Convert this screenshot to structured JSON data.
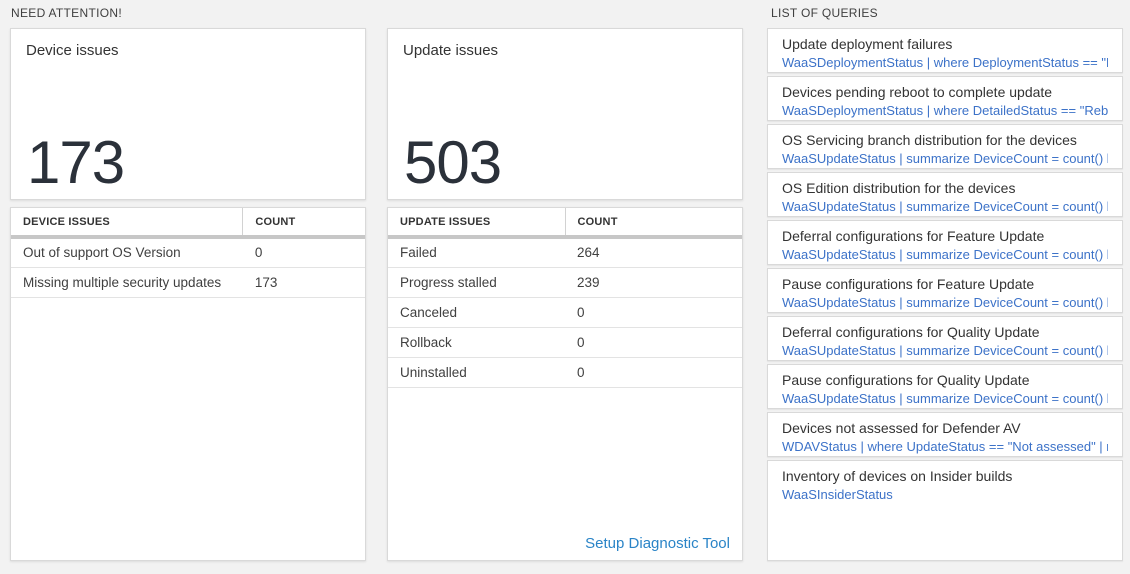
{
  "colors": {
    "page_bg": "#f2f2f2",
    "number_color": "#2b313a",
    "query_blue": "#3c72c8",
    "link_blue": "#2a84c7"
  },
  "sections": {
    "need_attention": "NEED ATTENTION!",
    "list_of_queries": "LIST OF QUERIES"
  },
  "cards": {
    "device": {
      "title": "Device issues",
      "big_number": "173",
      "table": {
        "headers": [
          "DEVICE ISSUES",
          "COUNT"
        ],
        "rows": [
          {
            "label": "Out of support OS Version",
            "count": "0"
          },
          {
            "label": "Missing multiple security updates",
            "count": "173"
          }
        ]
      }
    },
    "update": {
      "title": "Update issues",
      "big_number": "503",
      "table": {
        "headers": [
          "UPDATE ISSUES",
          "COUNT"
        ],
        "rows": [
          {
            "label": "Failed",
            "count": "264"
          },
          {
            "label": "Progress stalled",
            "count": "239"
          },
          {
            "label": "Canceled",
            "count": "0"
          },
          {
            "label": "Rollback",
            "count": "0"
          },
          {
            "label": "Uninstalled",
            "count": "0"
          }
        ]
      },
      "link": "Setup Diagnostic Tool"
    }
  },
  "queries": {
    "items": [
      {
        "title": "Update deployment failures",
        "query": "WaaSDeploymentStatus | where DeploymentStatus == \"Failed\" |..."
      },
      {
        "title": "Devices pending reboot to complete update",
        "query": "WaaSDeploymentStatus | where DetailedStatus == \"Reboot pend..."
      },
      {
        "title": "OS Servicing branch distribution for the devices",
        "query": "WaaSUpdateStatus | summarize DeviceCount = count() by OSSer..."
      },
      {
        "title": "OS Edition distribution for the devices",
        "query": "WaaSUpdateStatus | summarize DeviceCount = count() by OSEdit..."
      },
      {
        "title": "Deferral configurations for Feature Update",
        "query": "WaaSUpdateStatus | summarize DeviceCount = count() by Featur..."
      },
      {
        "title": "Pause configurations for Feature Update",
        "query": "WaaSUpdateStatus | summarize DeviceCount = count() by Featur..."
      },
      {
        "title": "Deferral configurations for Quality Update",
        "query": "WaaSUpdateStatus | summarize DeviceCount = count() by Qualit..."
      },
      {
        "title": "Pause configurations for Quality Update",
        "query": "WaaSUpdateStatus | summarize DeviceCount = count() by Qualit..."
      },
      {
        "title": "Devices not assessed for Defender AV",
        "query": "WDAVStatus | where UpdateStatus == \"Not assessed\" | render ta..."
      },
      {
        "title": "Inventory of devices on Insider builds",
        "query": "WaaSInsiderStatus"
      }
    ]
  }
}
